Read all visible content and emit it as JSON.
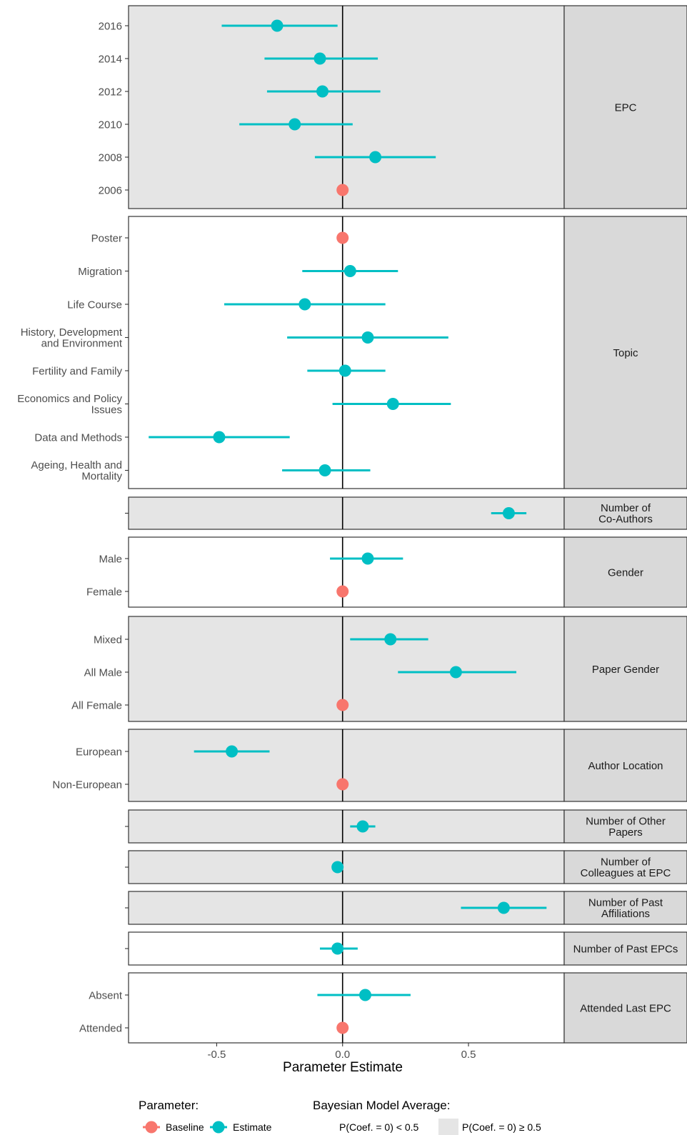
{
  "chart_data": {
    "type": "scatter",
    "subtype": "coefficient-plot-faceted",
    "xlabel": "Parameter Estimate",
    "xlim": [
      -0.85,
      0.88
    ],
    "x_ticks": [
      -0.5,
      0.0,
      0.5
    ],
    "x_tick_labels": [
      "-0.5",
      "0.0",
      "0.5"
    ],
    "reference_line": 0,
    "colors": {
      "baseline": "#F8766D",
      "estimate": "#00BFC4",
      "shaded_panel": "#E5E5E5",
      "strip": "#D9D9D9",
      "axis_text": "#4D4D4D"
    },
    "panels": [
      {
        "strip": "EPC",
        "shaded": true,
        "rows": [
          {
            "label": "2016",
            "type": "estimate",
            "est": -0.26,
            "lo": -0.48,
            "hi": -0.02
          },
          {
            "label": "2014",
            "type": "estimate",
            "est": -0.09,
            "lo": -0.31,
            "hi": 0.14
          },
          {
            "label": "2012",
            "type": "estimate",
            "est": -0.08,
            "lo": -0.3,
            "hi": 0.15
          },
          {
            "label": "2010",
            "type": "estimate",
            "est": -0.19,
            "lo": -0.41,
            "hi": 0.04
          },
          {
            "label": "2008",
            "type": "estimate",
            "est": 0.13,
            "lo": -0.11,
            "hi": 0.37
          },
          {
            "label": "2006",
            "type": "baseline",
            "est": 0.0
          }
        ]
      },
      {
        "strip": "Topic",
        "shaded": false,
        "rows": [
          {
            "label": "Poster",
            "type": "baseline",
            "est": 0.0
          },
          {
            "label": "Migration",
            "type": "estimate",
            "est": 0.03,
            "lo": -0.16,
            "hi": 0.22
          },
          {
            "label": "Life Course",
            "type": "estimate",
            "est": -0.15,
            "lo": -0.47,
            "hi": 0.17
          },
          {
            "label": "History, Development\nand Environment",
            "type": "estimate",
            "est": 0.1,
            "lo": -0.22,
            "hi": 0.42
          },
          {
            "label": "Fertility and Family",
            "type": "estimate",
            "est": 0.01,
            "lo": -0.14,
            "hi": 0.17
          },
          {
            "label": "Economics and Policy\nIssues",
            "type": "estimate",
            "est": 0.2,
            "lo": -0.04,
            "hi": 0.43
          },
          {
            "label": "Data and Methods",
            "type": "estimate",
            "est": -0.49,
            "lo": -0.77,
            "hi": -0.21
          },
          {
            "label": "Ageing, Health and\nMortality",
            "type": "estimate",
            "est": -0.07,
            "lo": -0.24,
            "hi": 0.11
          }
        ]
      },
      {
        "strip": "Number of\nCo-Authors",
        "shaded": true,
        "rows": [
          {
            "label": "",
            "type": "estimate",
            "est": 0.66,
            "lo": 0.59,
            "hi": 0.73
          }
        ]
      },
      {
        "strip": "Gender",
        "shaded": false,
        "rows": [
          {
            "label": "Male",
            "type": "estimate",
            "est": 0.1,
            "lo": -0.05,
            "hi": 0.24
          },
          {
            "label": "Female",
            "type": "baseline",
            "est": 0.0
          }
        ]
      },
      {
        "strip": "Paper Gender",
        "shaded": true,
        "rows": [
          {
            "label": "Mixed",
            "type": "estimate",
            "est": 0.19,
            "lo": 0.03,
            "hi": 0.34
          },
          {
            "label": "All Male",
            "type": "estimate",
            "est": 0.45,
            "lo": 0.22,
            "hi": 0.69
          },
          {
            "label": "All Female",
            "type": "baseline",
            "est": 0.0
          }
        ]
      },
      {
        "strip": "Author Location",
        "shaded": true,
        "rows": [
          {
            "label": "European",
            "type": "estimate",
            "est": -0.44,
            "lo": -0.59,
            "hi": -0.29
          },
          {
            "label": "Non-European",
            "type": "baseline",
            "est": 0.0
          }
        ]
      },
      {
        "strip": "Number of Other\nPapers",
        "shaded": true,
        "rows": [
          {
            "label": "",
            "type": "estimate",
            "est": 0.08,
            "lo": 0.03,
            "hi": 0.13
          }
        ]
      },
      {
        "strip": "Number of\nColleagues at EPC",
        "shaded": true,
        "rows": [
          {
            "label": "",
            "type": "estimate",
            "est": -0.02
          }
        ]
      },
      {
        "strip": "Number of Past\nAffiliations",
        "shaded": true,
        "rows": [
          {
            "label": "",
            "type": "estimate",
            "est": 0.64,
            "lo": 0.47,
            "hi": 0.81
          }
        ]
      },
      {
        "strip": "Number of Past EPCs",
        "shaded": false,
        "rows": [
          {
            "label": "",
            "type": "estimate",
            "est": -0.02,
            "lo": -0.09,
            "hi": 0.06
          }
        ]
      },
      {
        "strip": "Attended Last EPC",
        "shaded": false,
        "rows": [
          {
            "label": "Absent",
            "type": "estimate",
            "est": 0.09,
            "lo": -0.1,
            "hi": 0.27
          },
          {
            "label": "Attended",
            "type": "baseline",
            "est": 0.0
          }
        ]
      }
    ],
    "legend": {
      "placement": "bottom",
      "parameter_title": "Parameter:",
      "parameter_items": [
        {
          "label": "Baseline",
          "type": "baseline"
        },
        {
          "label": "Estimate",
          "type": "estimate"
        }
      ],
      "bma_title": "Bayesian Model Average:",
      "bma_items": [
        {
          "label": "P(Coef. = 0) < 0.5",
          "shaded": false
        },
        {
          "label": "P(Coef. = 0) ≥ 0.5",
          "shaded": true
        }
      ]
    }
  }
}
